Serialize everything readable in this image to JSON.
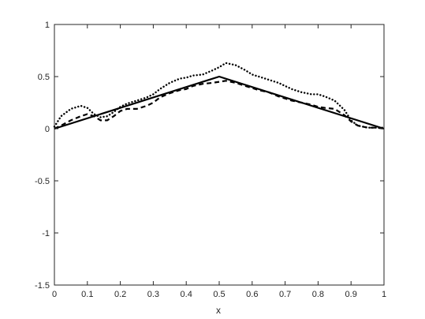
{
  "chart_data": {
    "type": "line",
    "title": "",
    "xlabel": "x",
    "ylabel": "",
    "xlim": [
      0,
      1
    ],
    "ylim": [
      -1.5,
      1
    ],
    "xticks": [
      0,
      0.1,
      0.2,
      0.3,
      0.4,
      0.5,
      0.6,
      0.7,
      0.8,
      0.9,
      1
    ],
    "xtick_labels": [
      "0",
      "0.1",
      "0.2",
      "0.3",
      "0.4",
      "0.5",
      "0.6",
      "0.7",
      "0.8",
      "0.9",
      "1"
    ],
    "yticks": [
      -1.5,
      -1,
      -0.5,
      0,
      0.5,
      1
    ],
    "ytick_labels": [
      "-1.5",
      "-1",
      "-0.5",
      "0",
      "0.5",
      "1"
    ],
    "grid": false,
    "legend": "none",
    "series": [
      {
        "style": "solid",
        "color": "#000000",
        "x": [
          0,
          0.5,
          1
        ],
        "y": [
          0,
          0.5,
          0
        ]
      },
      {
        "style": "dashed",
        "color": "#000000",
        "x": [
          0,
          0.02,
          0.05,
          0.08,
          0.1,
          0.12,
          0.14,
          0.16,
          0.18,
          0.2,
          0.22,
          0.25,
          0.28,
          0.3,
          0.32,
          0.35,
          0.38,
          0.4,
          0.42,
          0.45,
          0.48,
          0.5,
          0.52,
          0.55,
          0.58,
          0.6,
          0.62,
          0.65,
          0.68,
          0.7,
          0.72,
          0.75,
          0.78,
          0.8,
          0.82,
          0.85,
          0.88,
          0.9,
          0.92,
          0.95,
          0.98,
          1
        ],
        "y": [
          0,
          0.03,
          0.08,
          0.12,
          0.14,
          0.12,
          0.08,
          0.08,
          0.12,
          0.17,
          0.19,
          0.19,
          0.22,
          0.25,
          0.3,
          0.34,
          0.37,
          0.38,
          0.41,
          0.43,
          0.44,
          0.45,
          0.46,
          0.44,
          0.41,
          0.39,
          0.37,
          0.35,
          0.31,
          0.29,
          0.27,
          0.25,
          0.23,
          0.21,
          0.2,
          0.19,
          0.13,
          0.07,
          0.03,
          0.01,
          0.01,
          0
        ]
      },
      {
        "style": "dotted",
        "color": "#000000",
        "x": [
          0,
          0.02,
          0.05,
          0.08,
          0.1,
          0.12,
          0.14,
          0.16,
          0.18,
          0.2,
          0.22,
          0.25,
          0.28,
          0.3,
          0.32,
          0.35,
          0.38,
          0.4,
          0.42,
          0.45,
          0.48,
          0.5,
          0.52,
          0.55,
          0.58,
          0.6,
          0.62,
          0.65,
          0.68,
          0.7,
          0.72,
          0.75,
          0.78,
          0.8,
          0.82,
          0.85,
          0.88,
          0.9,
          0.92,
          0.95,
          0.98,
          1
        ],
        "y": [
          0.02,
          0.12,
          0.19,
          0.22,
          0.2,
          0.14,
          0.11,
          0.12,
          0.16,
          0.21,
          0.24,
          0.27,
          0.3,
          0.33,
          0.38,
          0.44,
          0.48,
          0.49,
          0.51,
          0.52,
          0.56,
          0.59,
          0.63,
          0.61,
          0.56,
          0.52,
          0.5,
          0.47,
          0.44,
          0.41,
          0.38,
          0.35,
          0.33,
          0.33,
          0.31,
          0.27,
          0.18,
          0.08,
          0.03,
          0.01,
          0.01,
          0.01
        ]
      }
    ]
  }
}
